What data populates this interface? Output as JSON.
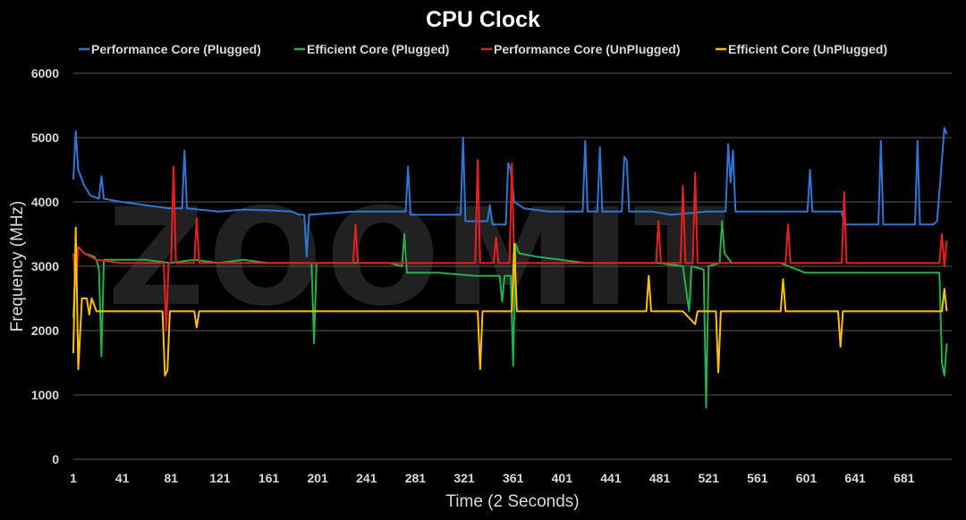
{
  "watermark": "ZOOMIT",
  "chart_data": {
    "type": "line",
    "title": "CPU Clock",
    "xlabel": "Time (2 Seconds)",
    "ylabel": "Frequency (MHz)",
    "ylim": [
      0,
      6000
    ],
    "yticks": [
      0,
      1000,
      2000,
      3000,
      4000,
      5000,
      6000
    ],
    "xlim": [
      1,
      720
    ],
    "xticks": [
      1,
      41,
      81,
      121,
      161,
      201,
      241,
      281,
      321,
      361,
      401,
      441,
      481,
      521,
      561,
      601,
      641,
      681
    ],
    "grid": true,
    "legend_position": "top",
    "series": [
      {
        "name": "Performance Core (Plugged)",
        "color": "#2e75d6",
        "points": [
          [
            1,
            4350
          ],
          [
            3,
            5100
          ],
          [
            5,
            4500
          ],
          [
            10,
            4250
          ],
          [
            15,
            4100
          ],
          [
            22,
            4050
          ],
          [
            24,
            4400
          ],
          [
            26,
            4050
          ],
          [
            40,
            4000
          ],
          [
            60,
            3950
          ],
          [
            80,
            3900
          ],
          [
            90,
            3900
          ],
          [
            92,
            4800
          ],
          [
            94,
            3900
          ],
          [
            120,
            3850
          ],
          [
            140,
            3880
          ],
          [
            160,
            3870
          ],
          [
            180,
            3850
          ],
          [
            186,
            3800
          ],
          [
            190,
            3800
          ],
          [
            192,
            3150
          ],
          [
            194,
            3800
          ],
          [
            230,
            3850
          ],
          [
            260,
            3850
          ],
          [
            273,
            3850
          ],
          [
            275,
            4550
          ],
          [
            277,
            3800
          ],
          [
            300,
            3800
          ],
          [
            318,
            3800
          ],
          [
            320,
            5000
          ],
          [
            322,
            3700
          ],
          [
            340,
            3700
          ],
          [
            342,
            3950
          ],
          [
            344,
            3650
          ],
          [
            355,
            3650
          ],
          [
            357,
            4600
          ],
          [
            359,
            4500
          ],
          [
            362,
            4000
          ],
          [
            370,
            3900
          ],
          [
            390,
            3850
          ],
          [
            410,
            3850
          ],
          [
            418,
            3850
          ],
          [
            420,
            4950
          ],
          [
            422,
            3850
          ],
          [
            430,
            3850
          ],
          [
            432,
            4850
          ],
          [
            434,
            3850
          ],
          [
            450,
            3850
          ],
          [
            452,
            4700
          ],
          [
            454,
            4650
          ],
          [
            456,
            3850
          ],
          [
            475,
            3850
          ],
          [
            490,
            3800
          ],
          [
            520,
            3850
          ],
          [
            535,
            3850
          ],
          [
            537,
            4900
          ],
          [
            539,
            4300
          ],
          [
            541,
            4800
          ],
          [
            543,
            3850
          ],
          [
            570,
            3850
          ],
          [
            590,
            3850
          ],
          [
            602,
            3850
          ],
          [
            604,
            4500
          ],
          [
            606,
            3850
          ],
          [
            620,
            3850
          ],
          [
            630,
            3850
          ],
          [
            632,
            3650
          ],
          [
            640,
            3650
          ],
          [
            660,
            3650
          ],
          [
            662,
            4950
          ],
          [
            664,
            3650
          ],
          [
            690,
            3650
          ],
          [
            692,
            4950
          ],
          [
            694,
            3650
          ],
          [
            705,
            3650
          ],
          [
            708,
            3700
          ],
          [
            711,
            4400
          ],
          [
            714,
            5150
          ],
          [
            716,
            5050
          ]
        ]
      },
      {
        "name": "Efficient Core (Plugged)",
        "color": "#21b04b",
        "points": [
          [
            1,
            2200
          ],
          [
            3,
            3200
          ],
          [
            5,
            3300
          ],
          [
            10,
            3200
          ],
          [
            18,
            3150
          ],
          [
            20,
            3100
          ],
          [
            22,
            2950
          ],
          [
            24,
            1600
          ],
          [
            26,
            3100
          ],
          [
            40,
            3100
          ],
          [
            60,
            3100
          ],
          [
            80,
            3050
          ],
          [
            100,
            3100
          ],
          [
            120,
            3050
          ],
          [
            140,
            3100
          ],
          [
            160,
            3050
          ],
          [
            180,
            3050
          ],
          [
            196,
            3050
          ],
          [
            198,
            1800
          ],
          [
            200,
            3050
          ],
          [
            230,
            3050
          ],
          [
            260,
            3050
          ],
          [
            270,
            3000
          ],
          [
            272,
            3500
          ],
          [
            274,
            2900
          ],
          [
            300,
            2900
          ],
          [
            330,
            2850
          ],
          [
            350,
            2850
          ],
          [
            352,
            2450
          ],
          [
            354,
            2850
          ],
          [
            359,
            2850
          ],
          [
            361,
            1450
          ],
          [
            363,
            3350
          ],
          [
            366,
            3200
          ],
          [
            380,
            3150
          ],
          [
            400,
            3100
          ],
          [
            420,
            3050
          ],
          [
            440,
            3050
          ],
          [
            460,
            3050
          ],
          [
            480,
            3050
          ],
          [
            500,
            3000
          ],
          [
            505,
            2300
          ],
          [
            507,
            3000
          ],
          [
            517,
            2950
          ],
          [
            519,
            800
          ],
          [
            521,
            3000
          ],
          [
            530,
            3050
          ],
          [
            532,
            3700
          ],
          [
            534,
            3200
          ],
          [
            540,
            3050
          ],
          [
            560,
            3050
          ],
          [
            580,
            3050
          ],
          [
            600,
            2900
          ],
          [
            620,
            2900
          ],
          [
            640,
            2900
          ],
          [
            660,
            2900
          ],
          [
            680,
            2900
          ],
          [
            700,
            2900
          ],
          [
            710,
            2900
          ],
          [
            712,
            1500
          ],
          [
            714,
            1300
          ],
          [
            716,
            1800
          ]
        ]
      },
      {
        "name": "Performance Core (UnPlugged)",
        "color": "#e81f1f",
        "points": [
          [
            1,
            3200
          ],
          [
            3,
            2700
          ],
          [
            5,
            3300
          ],
          [
            10,
            3200
          ],
          [
            20,
            3100
          ],
          [
            40,
            3050
          ],
          [
            60,
            3050
          ],
          [
            75,
            3050
          ],
          [
            77,
            2000
          ],
          [
            79,
            3050
          ],
          [
            81,
            3050
          ],
          [
            83,
            4550
          ],
          [
            85,
            3050
          ],
          [
            100,
            3050
          ],
          [
            102,
            3750
          ],
          [
            104,
            3050
          ],
          [
            130,
            3050
          ],
          [
            160,
            3050
          ],
          [
            200,
            3050
          ],
          [
            230,
            3050
          ],
          [
            232,
            3650
          ],
          [
            234,
            3050
          ],
          [
            260,
            3050
          ],
          [
            290,
            3050
          ],
          [
            320,
            3050
          ],
          [
            330,
            3050
          ],
          [
            332,
            4650
          ],
          [
            334,
            3050
          ],
          [
            345,
            3050
          ],
          [
            347,
            3450
          ],
          [
            349,
            3050
          ],
          [
            358,
            3050
          ],
          [
            360,
            4600
          ],
          [
            362,
            3050
          ],
          [
            390,
            3050
          ],
          [
            420,
            3050
          ],
          [
            450,
            3050
          ],
          [
            478,
            3050
          ],
          [
            480,
            3700
          ],
          [
            482,
            3050
          ],
          [
            498,
            3050
          ],
          [
            500,
            4250
          ],
          [
            502,
            3050
          ],
          [
            508,
            3050
          ],
          [
            510,
            4450
          ],
          [
            512,
            3050
          ],
          [
            525,
            3050
          ],
          [
            527,
            3050
          ],
          [
            540,
            3050
          ],
          [
            560,
            3050
          ],
          [
            580,
            3050
          ],
          [
            584,
            3050
          ],
          [
            586,
            3650
          ],
          [
            588,
            3050
          ],
          [
            600,
            3050
          ],
          [
            620,
            3050
          ],
          [
            630,
            3050
          ],
          [
            632,
            4150
          ],
          [
            634,
            3050
          ],
          [
            660,
            3050
          ],
          [
            680,
            3050
          ],
          [
            700,
            3050
          ],
          [
            710,
            3050
          ],
          [
            712,
            3500
          ],
          [
            714,
            3000
          ],
          [
            716,
            3400
          ]
        ]
      },
      {
        "name": "Efficient Core (UnPlugged)",
        "color": "#ffc000",
        "points": [
          [
            1,
            1650
          ],
          [
            3,
            3600
          ],
          [
            5,
            1400
          ],
          [
            8,
            2500
          ],
          [
            12,
            2500
          ],
          [
            14,
            2250
          ],
          [
            16,
            2500
          ],
          [
            20,
            2300
          ],
          [
            40,
            2300
          ],
          [
            60,
            2300
          ],
          [
            74,
            2300
          ],
          [
            76,
            1300
          ],
          [
            78,
            1380
          ],
          [
            80,
            2300
          ],
          [
            100,
            2300
          ],
          [
            102,
            2050
          ],
          [
            104,
            2300
          ],
          [
            130,
            2300
          ],
          [
            160,
            2300
          ],
          [
            200,
            2300
          ],
          [
            240,
            2300
          ],
          [
            280,
            2300
          ],
          [
            320,
            2300
          ],
          [
            332,
            2300
          ],
          [
            334,
            1400
          ],
          [
            336,
            2300
          ],
          [
            360,
            2300
          ],
          [
            362,
            3350
          ],
          [
            364,
            2300
          ],
          [
            400,
            2300
          ],
          [
            440,
            2300
          ],
          [
            470,
            2300
          ],
          [
            472,
            2850
          ],
          [
            474,
            2300
          ],
          [
            500,
            2300
          ],
          [
            510,
            2100
          ],
          [
            512,
            2300
          ],
          [
            527,
            2300
          ],
          [
            529,
            1350
          ],
          [
            531,
            2300
          ],
          [
            560,
            2300
          ],
          [
            580,
            2300
          ],
          [
            582,
            2800
          ],
          [
            584,
            2300
          ],
          [
            600,
            2300
          ],
          [
            620,
            2300
          ],
          [
            627,
            2300
          ],
          [
            629,
            1750
          ],
          [
            631,
            2300
          ],
          [
            660,
            2300
          ],
          [
            680,
            2300
          ],
          [
            700,
            2300
          ],
          [
            712,
            2300
          ],
          [
            714,
            2650
          ],
          [
            716,
            2300
          ]
        ]
      }
    ]
  }
}
